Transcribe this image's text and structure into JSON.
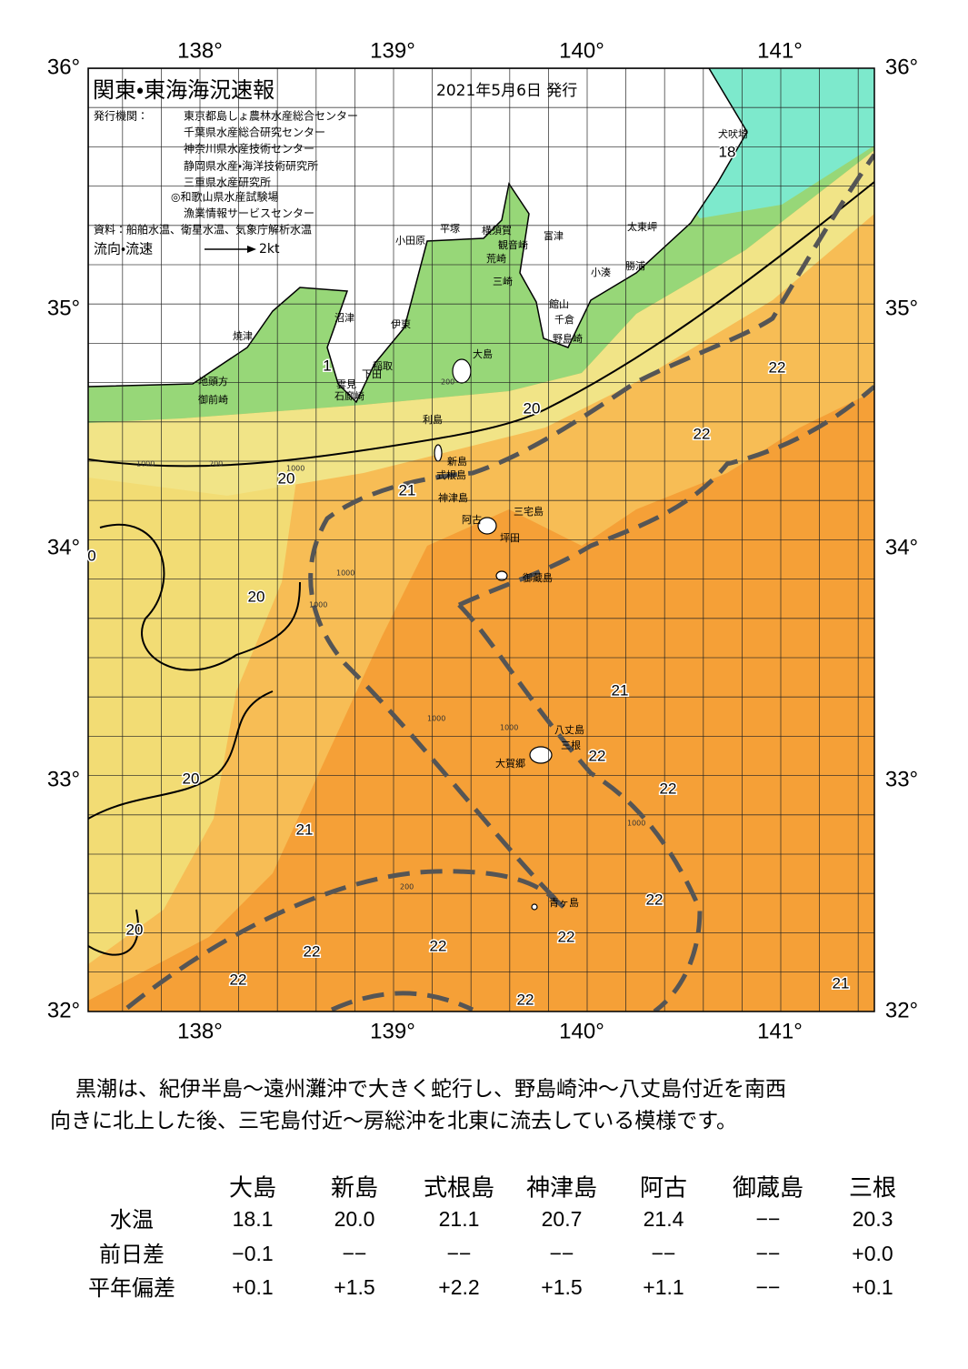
{
  "header": {
    "title": "関東・東海海況速報",
    "date": "2021年5月6日 発行",
    "issuers_label": "発行機関：",
    "issuers": [
      "東京都島しょ農林水産総合センター",
      "千葉県水産総合研究センター",
      "神奈川県水産技術センター",
      "静岡県水産・海洋技術研究所",
      "三重県水産研究所",
      "◎和歌山県水産試験場",
      "漁業情報サービスセンター"
    ],
    "source": "資料：船舶水温、衛星水温、気象庁解析水温",
    "legend_label": "流向・流速",
    "legend_speed": "2kt"
  },
  "axes": {
    "lon_labels": [
      "138°",
      "139°",
      "140°",
      "141°"
    ],
    "lat_labels": [
      "36°",
      "35°",
      "34°",
      "33°",
      "32°"
    ]
  },
  "place_names": [
    "犬吠埼",
    "太東岬",
    "勝浦",
    "小湊",
    "富津",
    "館山",
    "千倉",
    "野島崎",
    "横須賀",
    "観音崎",
    "荒崎",
    "三崎",
    "平塚",
    "小田原",
    "沼津",
    "伊東",
    "大島",
    "焼津",
    "地頭方",
    "御前崎",
    "稲取",
    "下田",
    "雲見",
    "石廊崎",
    "利島",
    "新島",
    "式根島",
    "神津島",
    "三宅島",
    "阿古",
    "坪田",
    "御蔵島",
    "八丈島",
    "三根",
    "大賀郷",
    "青ヶ島"
  ],
  "depth_labels": [
    "1000",
    "200",
    "200",
    "1000",
    "1000",
    "1000",
    "1000",
    "1000",
    "1000",
    "200"
  ],
  "temperature_labels": [
    "18",
    "1",
    "20",
    "22",
    "22",
    "20",
    "21",
    "0",
    "20",
    "21",
    "22",
    "22",
    "20",
    "21",
    "22",
    "22",
    "20",
    "22",
    "22",
    "22",
    "21",
    "22"
  ],
  "paragraph": [
    "　黒潮は、紀伊半島～遠州灘沖で大きく蛇行し、野島崎沖～八丈島付近を南西",
    "向きに北上した後、三宅島付近～房総沖を北東に流去している模様です。"
  ],
  "table": {
    "columns": [
      "大島",
      "新島",
      "式根島",
      "神津島",
      "阿古",
      "御蔵島",
      "三根"
    ],
    "rows": [
      {
        "label": "水温",
        "cells": [
          "18.1",
          "20.0",
          "21.1",
          "20.7",
          "21.4",
          "−−",
          "20.3"
        ]
      },
      {
        "label": "前日差",
        "cells": [
          "−0.1",
          "−−",
          "−−",
          "−−",
          "−−",
          "−−",
          "+0.0"
        ]
      },
      {
        "label": "平年偏差",
        "cells": [
          "+0.1",
          "+1.5",
          "+2.2",
          "+1.5",
          "+1.1",
          "−−",
          "+0.1"
        ]
      }
    ]
  }
}
